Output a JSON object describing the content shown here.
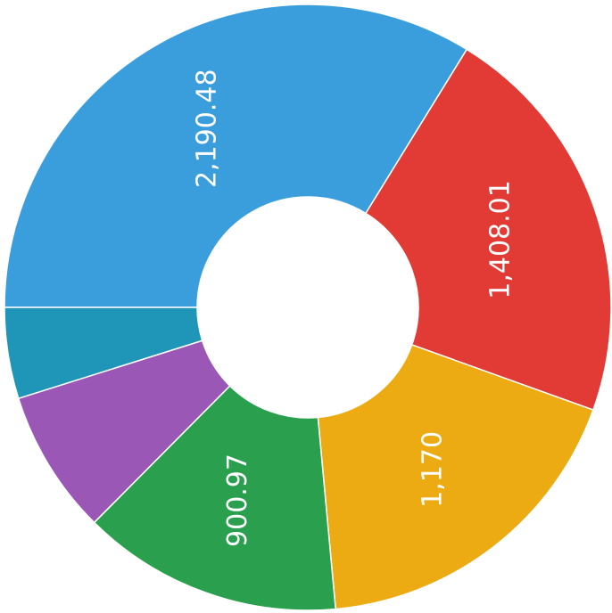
{
  "chart_data": {
    "type": "doughnut",
    "values": [
      2190.48,
      1408.01,
      1170,
      900.97,
      500,
      315
    ],
    "value_labels": [
      "2,190.48",
      "1,408.01",
      "1,170",
      "900.97",
      null,
      null
    ],
    "colors": [
      "#3a9edc",
      "#e23b35",
      "#ecab12",
      "#2aa04f",
      "#9a57b5",
      "#1f95b8"
    ]
  }
}
